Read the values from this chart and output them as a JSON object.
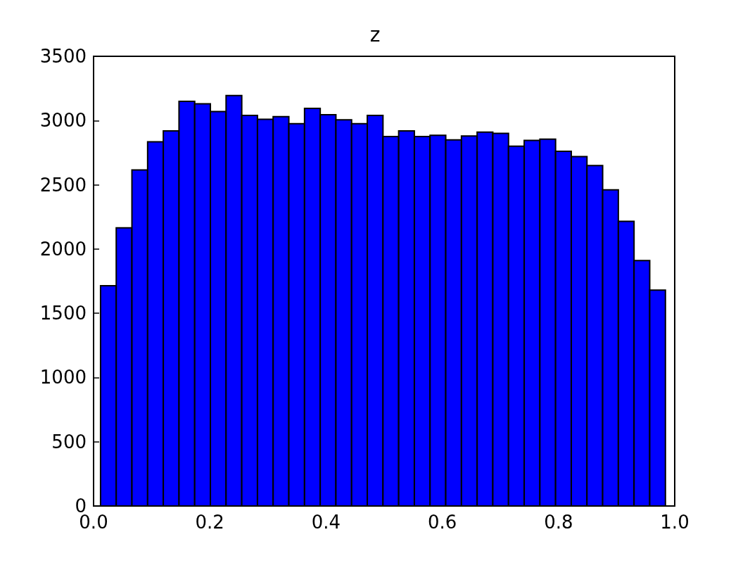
{
  "chart_data": {
    "type": "histogram",
    "title": "z",
    "color": "#0000ff",
    "bins": [
      0.012,
      0.039,
      0.066,
      0.093,
      0.12,
      0.147,
      0.174,
      0.201,
      0.228,
      0.255,
      0.282,
      0.309,
      0.336,
      0.363,
      0.39,
      0.417,
      0.444,
      0.471,
      0.498,
      0.525,
      0.552,
      0.579,
      0.606,
      0.633,
      0.66,
      0.687,
      0.714,
      0.741,
      0.768,
      0.795,
      0.822,
      0.849,
      0.876,
      0.903,
      0.93,
      0.957,
      0.984
    ],
    "values": [
      1715,
      2165,
      2615,
      2835,
      2920,
      3150,
      3130,
      3070,
      3195,
      3040,
      3010,
      3030,
      2975,
      3095,
      3045,
      3005,
      2975,
      3040,
      2875,
      2920,
      2875,
      2885,
      2850,
      2880,
      2910,
      2900,
      2800,
      2845,
      2855,
      2760,
      2720,
      2650,
      2460,
      2215,
      1910,
      1680
    ],
    "xlim": [
      0,
      1
    ],
    "xticks": [
      {
        "value": 0,
        "label": "0.0"
      },
      {
        "value": 0.2,
        "label": "0.2"
      },
      {
        "value": 0.4,
        "label": "0.4"
      },
      {
        "value": 0.6,
        "label": "0.6"
      },
      {
        "value": 0.8,
        "label": "0.8"
      },
      {
        "value": 1,
        "label": "1.0"
      }
    ],
    "ylim": [
      0,
      3500
    ],
    "yticks": [
      0,
      500,
      1000,
      1500,
      2000,
      2500,
      3000,
      3500
    ],
    "grid": false
  }
}
